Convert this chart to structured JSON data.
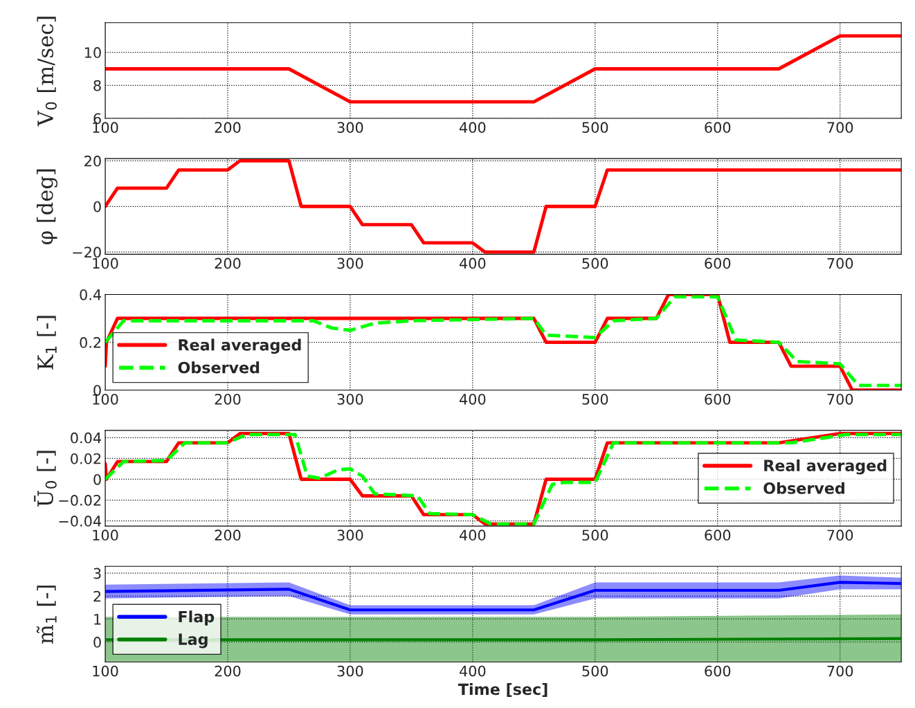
{
  "chart_data": [
    {
      "type": "line",
      "ylabel": "V$_{0}$ [m/sec]",
      "xlim": [
        100,
        750
      ],
      "xticks": [
        100,
        200,
        300,
        400,
        500,
        600,
        700
      ],
      "ylim": [
        6,
        11.8
      ],
      "yticks": [
        6,
        8,
        10
      ],
      "grid": true,
      "legend": false,
      "series": [
        {
          "color": "#ff0000",
          "x": [
            100,
            250,
            300,
            450,
            500,
            650,
            700,
            750
          ],
          "values": [
            9,
            9,
            7,
            7,
            9,
            9,
            11,
            11
          ]
        }
      ]
    },
    {
      "type": "line",
      "ylabel": "φ [deg]",
      "xlim": [
        100,
        750
      ],
      "xticks": [
        100,
        200,
        300,
        400,
        500,
        600,
        700
      ],
      "ylim": [
        -21,
        21
      ],
      "yticks": [
        {
          "value": -20,
          "label": "−20"
        },
        0,
        20
      ],
      "grid": true,
      "legend": false,
      "series": [
        {
          "color": "#ff0000",
          "x": [
            100,
            110,
            150,
            160,
            200,
            210,
            250,
            260,
            300,
            310,
            350,
            360,
            400,
            410,
            450,
            460,
            500,
            510,
            750
          ],
          "values": [
            0,
            8,
            8,
            16,
            16,
            20,
            20,
            0,
            0,
            -8,
            -8,
            -16,
            -16,
            -20,
            -20,
            0,
            0,
            16,
            16
          ]
        }
      ]
    },
    {
      "type": "line",
      "ylabel": "K$_{1}$ [-]",
      "xlim": [
        100,
        750
      ],
      "xticks": [
        100,
        200,
        300,
        400,
        500,
        600,
        700
      ],
      "ylim": [
        0,
        0.4
      ],
      "yticks": [
        0,
        0.2,
        0.4
      ],
      "grid": true,
      "legend": "bottom left",
      "series": [
        {
          "name": "Real averaged",
          "color": "#ff0000",
          "line_style": "solid",
          "x": [
            100,
            101,
            110,
            450,
            460,
            500,
            510,
            550,
            560,
            600,
            610,
            650,
            660,
            700,
            710,
            750
          ],
          "values": [
            0.1,
            0.2,
            0.3,
            0.3,
            0.2,
            0.2,
            0.3,
            0.3,
            0.4,
            0.4,
            0.2,
            0.2,
            0.1,
            0.1,
            0,
            0
          ]
        },
        {
          "name": "Observed",
          "color": "#00ff00",
          "line_style": "dashed",
          "x": [
            100,
            115,
            270,
            285,
            300,
            320,
            350,
            450,
            460,
            500,
            515,
            550,
            565,
            600,
            615,
            650,
            665,
            700,
            715,
            750
          ],
          "values": [
            0.2,
            0.29,
            0.29,
            0.26,
            0.25,
            0.28,
            0.29,
            0.3,
            0.23,
            0.22,
            0.29,
            0.3,
            0.39,
            0.39,
            0.21,
            0.2,
            0.12,
            0.11,
            0.02,
            0.02
          ]
        }
      ]
    },
    {
      "type": "line",
      "ylabel": "Ū$_{0}$ [-]",
      "xlim": [
        100,
        750
      ],
      "xticks": [
        100,
        200,
        300,
        400,
        500,
        600,
        700
      ],
      "ylim": [
        -0.045,
        0.047
      ],
      "yticks": [
        {
          "value": -0.04,
          "label": "−0.04"
        },
        {
          "value": -0.02,
          "label": "−0.02"
        },
        0,
        0.02,
        0.04
      ],
      "grid": true,
      "legend": "right",
      "series": [
        {
          "name": "Real averaged",
          "color": "#ff0000",
          "line_style": "solid",
          "x": [
            100,
            101,
            110,
            150,
            160,
            200,
            210,
            250,
            260,
            300,
            310,
            350,
            360,
            400,
            410,
            450,
            460,
            500,
            510,
            650,
            700,
            750
          ],
          "values": [
            0.015,
            0,
            0.017,
            0.017,
            0.035,
            0.035,
            0.044,
            0.044,
            0,
            0,
            -0.016,
            -0.016,
            -0.034,
            -0.034,
            -0.043,
            -0.043,
            0,
            0,
            0.035,
            0.035,
            0.044,
            0.044
          ]
        },
        {
          "name": "Observed",
          "color": "#00ff00",
          "line_style": "dashed",
          "x": [
            100,
            115,
            150,
            165,
            200,
            215,
            255,
            265,
            275,
            290,
            300,
            310,
            320,
            355,
            365,
            400,
            415,
            450,
            465,
            475,
            500,
            515,
            660,
            705,
            750
          ],
          "values": [
            0,
            0.017,
            0.018,
            0.035,
            0.035,
            0.043,
            0.043,
            0.003,
            0.001,
            0.009,
            0.01,
            0.003,
            -0.014,
            -0.016,
            -0.033,
            -0.034,
            -0.043,
            -0.043,
            -0.005,
            -0.003,
            -0.003,
            0.035,
            0.035,
            0.043,
            0.043
          ]
        }
      ]
    },
    {
      "type": "line",
      "ylabel": "m̃$_{1}$ [-]",
      "xlabel": "Time [sec]",
      "xlim": [
        100,
        750
      ],
      "xticks": [
        100,
        200,
        300,
        400,
        500,
        600,
        700
      ],
      "ylim": [
        -0.87,
        3.3
      ],
      "yticks": [
        0,
        1,
        2,
        3
      ],
      "grid": true,
      "legend": "bottom left",
      "series": [
        {
          "name": "Flap",
          "color": "#0000ff",
          "line_style": "solid",
          "x": [
            100,
            250,
            300,
            450,
            500,
            650,
            700,
            750
          ],
          "values": [
            2.2,
            2.3,
            1.4,
            1.4,
            2.25,
            2.25,
            2.6,
            2.55
          ],
          "lower": [
            1.9,
            2.0,
            1.2,
            1.2,
            1.9,
            1.9,
            2.3,
            2.3
          ],
          "upper": [
            2.5,
            2.6,
            1.6,
            1.6,
            2.6,
            2.6,
            2.9,
            2.8
          ]
        },
        {
          "name": "Lag",
          "color": "#008000",
          "line_style": "solid",
          "x": [
            100,
            500,
            750
          ],
          "values": [
            0.1,
            0.1,
            0.15
          ],
          "lower": [
            -0.85,
            -0.85,
            -0.85
          ],
          "upper": [
            1.1,
            1.1,
            1.2
          ]
        }
      ]
    }
  ]
}
